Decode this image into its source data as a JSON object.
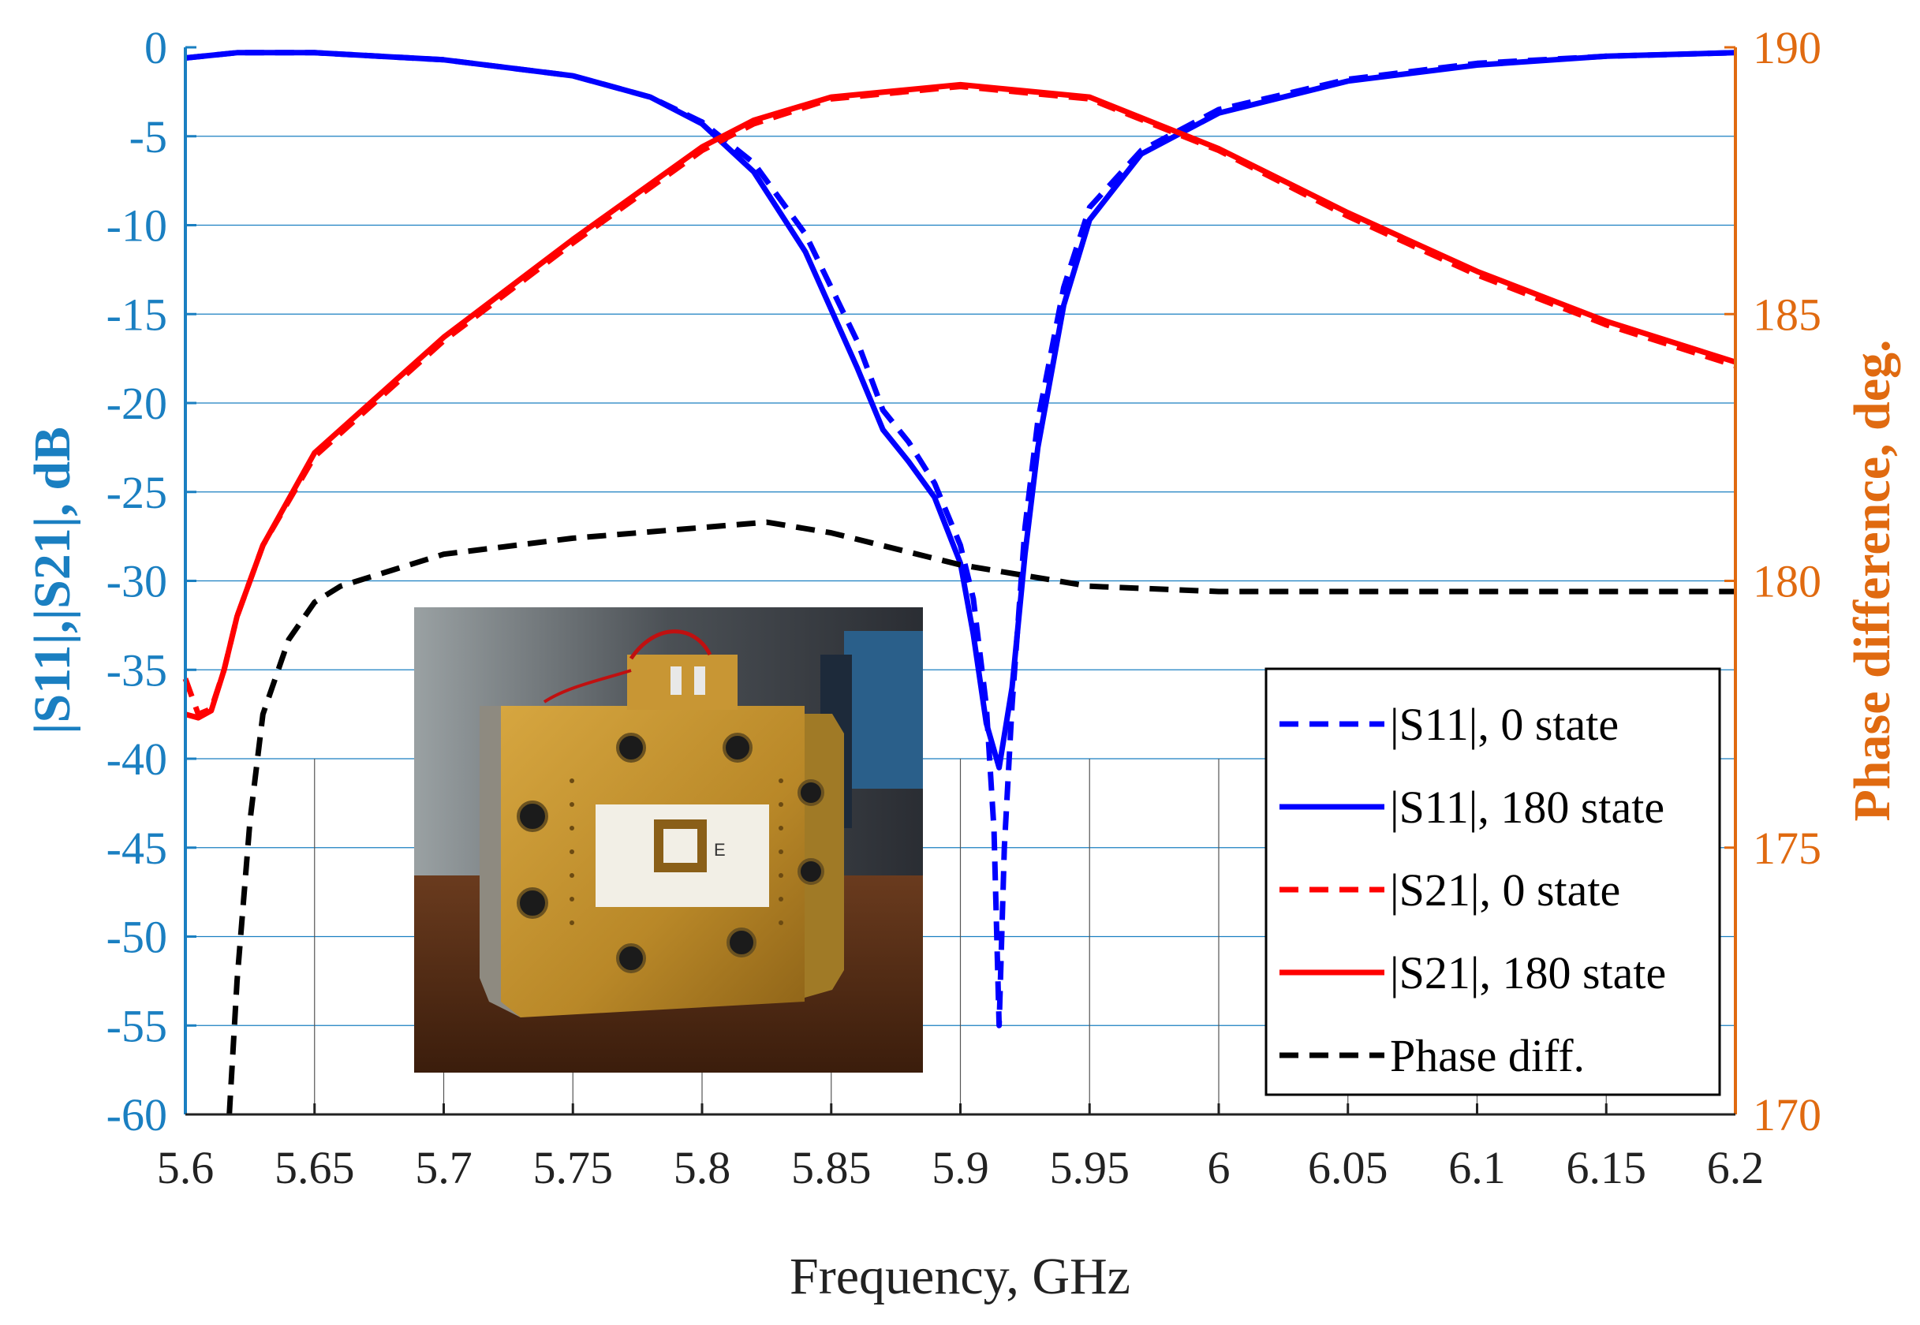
{
  "chart_data": {
    "type": "line",
    "xlabel": "Frequency, GHz",
    "ylabel_left": "|S11|,|S21|, dB",
    "ylabel_right": "Phase difference, deg.",
    "xlim": [
      5.6,
      6.2
    ],
    "ylim_left": [
      -60,
      0
    ],
    "ylim_right": [
      170,
      190
    ],
    "x_ticks": [
      "5.6",
      "5.65",
      "5.7",
      "5.75",
      "5.8",
      "5.85",
      "5.9",
      "5.95",
      "6",
      "6.05",
      "6.1",
      "6.15",
      "6.2"
    ],
    "y_ticks_left": [
      "0",
      "-5",
      "-10",
      "-15",
      "-20",
      "-25",
      "-30",
      "-35",
      "-40",
      "-45",
      "-50",
      "-55",
      "-60"
    ],
    "y_ticks_right": [
      "190",
      "185",
      "180",
      "175",
      "170"
    ],
    "left_color": "#1a7fc1",
    "right_color": "#e06a10",
    "legend_position": "lower-right",
    "inset_image": "photo of waveguide phase shifter prototype (gold metal block with square slot on white substrate)",
    "series": [
      {
        "name": "|S11|, 0 state",
        "axis": "left",
        "color": "#0000ff",
        "style": "dashed",
        "x": [
          5.6,
          5.62,
          5.65,
          5.7,
          5.75,
          5.78,
          5.8,
          5.82,
          5.84,
          5.86,
          5.87,
          5.88,
          5.89,
          5.9,
          5.905,
          5.91,
          5.913,
          5.915,
          5.917,
          5.92,
          5.925,
          5.93,
          5.94,
          5.95,
          5.97,
          6.0,
          6.05,
          6.1,
          6.15,
          6.2
        ],
        "y": [
          -0.6,
          -0.3,
          -0.3,
          -0.7,
          -1.6,
          -2.8,
          -4.2,
          -6.5,
          -10.5,
          -16.5,
          -20.4,
          -22.2,
          -24.5,
          -28.0,
          -31.0,
          -37.0,
          -44.0,
          -55.0,
          -45.0,
          -37.0,
          -27.0,
          -21.0,
          -13.5,
          -9.0,
          -5.8,
          -3.5,
          -1.8,
          -0.9,
          -0.5,
          -0.3
        ]
      },
      {
        "name": "|S11|, 180 state",
        "axis": "left",
        "color": "#0000ff",
        "style": "solid",
        "x": [
          5.6,
          5.62,
          5.65,
          5.7,
          5.75,
          5.78,
          5.8,
          5.82,
          5.84,
          5.86,
          5.87,
          5.88,
          5.89,
          5.9,
          5.905,
          5.91,
          5.915,
          5.92,
          5.925,
          5.93,
          5.94,
          5.95,
          5.97,
          6.0,
          6.05,
          6.1,
          6.15,
          6.2
        ],
        "y": [
          -0.6,
          -0.3,
          -0.3,
          -0.7,
          -1.6,
          -2.8,
          -4.3,
          -7.0,
          -11.5,
          -18.0,
          -21.5,
          -23.3,
          -25.3,
          -29.0,
          -33.0,
          -38.0,
          -40.5,
          -36.0,
          -28.5,
          -22.5,
          -14.5,
          -9.7,
          -6.0,
          -3.7,
          -1.9,
          -1.0,
          -0.5,
          -0.3
        ]
      },
      {
        "name": "|S21|, 0 state",
        "axis": "left",
        "color": "#ff0000",
        "style": "dashed",
        "x": [
          5.6,
          5.605,
          5.61,
          5.615,
          5.62,
          5.63,
          5.65,
          5.7,
          5.75,
          5.8,
          5.82,
          5.85,
          5.9,
          5.95,
          6.0,
          6.05,
          6.1,
          6.15,
          6.2
        ],
        "y": [
          -35.5,
          -37.5,
          -37.2,
          -35.0,
          -32.0,
          -28.0,
          -23.0,
          -16.5,
          -11.0,
          -5.8,
          -4.3,
          -2.9,
          -2.2,
          -2.9,
          -5.8,
          -9.5,
          -12.8,
          -15.6,
          -17.9
        ]
      },
      {
        "name": "|S21|, 180 state",
        "axis": "left",
        "color": "#ff0000",
        "style": "solid",
        "x": [
          5.6,
          5.605,
          5.61,
          5.615,
          5.62,
          5.63,
          5.65,
          5.7,
          5.75,
          5.8,
          5.82,
          5.85,
          5.9,
          5.95,
          6.0,
          6.05,
          6.1,
          6.15,
          6.2
        ],
        "y": [
          -37.5,
          -37.7,
          -37.3,
          -35.0,
          -32.0,
          -28.0,
          -22.8,
          -16.3,
          -10.8,
          -5.6,
          -4.1,
          -2.8,
          -2.1,
          -2.8,
          -5.7,
          -9.3,
          -12.6,
          -15.4,
          -17.7
        ]
      },
      {
        "name": "Phase diff.",
        "axis": "right",
        "color": "#000000",
        "style": "dashed",
        "x": [
          5.617,
          5.62,
          5.625,
          5.63,
          5.64,
          5.65,
          5.66,
          5.68,
          5.7,
          5.75,
          5.8,
          5.825,
          5.85,
          5.9,
          5.95,
          6.0,
          6.05,
          6.1,
          6.15,
          6.2
        ],
        "y": [
          170.0,
          172.5,
          175.5,
          177.5,
          178.9,
          179.6,
          179.9,
          180.2,
          180.5,
          180.8,
          181.0,
          181.1,
          180.9,
          180.3,
          179.9,
          179.8,
          179.8,
          179.8,
          179.8,
          179.8
        ]
      }
    ]
  }
}
